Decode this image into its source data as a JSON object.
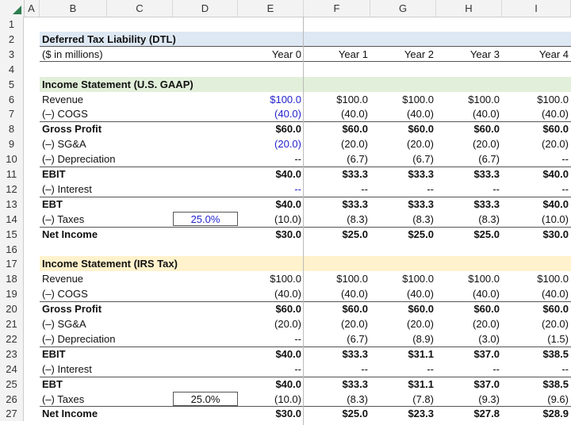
{
  "columns": [
    "A",
    "B",
    "C",
    "D",
    "E",
    "F",
    "G",
    "H",
    "I"
  ],
  "title": "Deferred Tax Liability (DTL)",
  "units": "($ in millions)",
  "years": [
    "Year 0",
    "Year 1",
    "Year 2",
    "Year 3",
    "Year 4"
  ],
  "colors": {
    "title_bg": "#dde8f3",
    "gaap_bg": "#e2efda",
    "irs_bg": "#fff2cc",
    "input_blue": "#2222cc"
  },
  "gaap": {
    "header": "Income Statement (U.S. GAAP)",
    "tax_rate": "25.0%",
    "rows": [
      {
        "label": "Revenue",
        "values": [
          "$100.0",
          "$100.0",
          "$100.0",
          "$100.0",
          "$100.0"
        ]
      },
      {
        "label": "(–) COGS",
        "values": [
          "(40.0)",
          "(40.0)",
          "(40.0)",
          "(40.0)",
          "(40.0)"
        ]
      },
      {
        "label": "Gross Profit",
        "values": [
          "$60.0",
          "$60.0",
          "$60.0",
          "$60.0",
          "$60.0"
        ]
      },
      {
        "label": "(–) SG&A",
        "values": [
          "(20.0)",
          "(20.0)",
          "(20.0)",
          "(20.0)",
          "(20.0)"
        ]
      },
      {
        "label": "(–) Depreciation",
        "values": [
          "--",
          "(6.7)",
          "(6.7)",
          "(6.7)",
          "--"
        ]
      },
      {
        "label": "EBIT",
        "values": [
          "$40.0",
          "$33.3",
          "$33.3",
          "$33.3",
          "$40.0"
        ]
      },
      {
        "label": "(–) Interest",
        "values": [
          "--",
          "--",
          "--",
          "--",
          "--"
        ]
      },
      {
        "label": "EBT",
        "values": [
          "$40.0",
          "$33.3",
          "$33.3",
          "$33.3",
          "$40.0"
        ]
      },
      {
        "label": "(–) Taxes",
        "values": [
          "(10.0)",
          "(8.3)",
          "(8.3)",
          "(8.3)",
          "(10.0)"
        ]
      },
      {
        "label": "Net Income",
        "values": [
          "$30.0",
          "$25.0",
          "$25.0",
          "$25.0",
          "$30.0"
        ]
      }
    ]
  },
  "irs": {
    "header": "Income Statement (IRS Tax)",
    "tax_rate": "25.0%",
    "rows": [
      {
        "label": "Revenue",
        "values": [
          "$100.0",
          "$100.0",
          "$100.0",
          "$100.0",
          "$100.0"
        ]
      },
      {
        "label": "(–) COGS",
        "values": [
          "(40.0)",
          "(40.0)",
          "(40.0)",
          "(40.0)",
          "(40.0)"
        ]
      },
      {
        "label": "Gross Profit",
        "values": [
          "$60.0",
          "$60.0",
          "$60.0",
          "$60.0",
          "$60.0"
        ]
      },
      {
        "label": "(–) SG&A",
        "values": [
          "(20.0)",
          "(20.0)",
          "(20.0)",
          "(20.0)",
          "(20.0)"
        ]
      },
      {
        "label": "(–) Depreciation",
        "values": [
          "--",
          "(6.7)",
          "(8.9)",
          "(3.0)",
          "(1.5)"
        ]
      },
      {
        "label": "EBIT",
        "values": [
          "$40.0",
          "$33.3",
          "$31.1",
          "$37.0",
          "$38.5"
        ]
      },
      {
        "label": "(–) Interest",
        "values": [
          "--",
          "--",
          "--",
          "--",
          "--"
        ]
      },
      {
        "label": "EBT",
        "values": [
          "$40.0",
          "$33.3",
          "$31.1",
          "$37.0",
          "$38.5"
        ]
      },
      {
        "label": "(–) Taxes",
        "values": [
          "(10.0)",
          "(8.3)",
          "(7.8)",
          "(9.3)",
          "(9.6)"
        ]
      },
      {
        "label": "Net Income",
        "values": [
          "$30.0",
          "$25.0",
          "$23.3",
          "$27.8",
          "$28.9"
        ]
      }
    ]
  }
}
